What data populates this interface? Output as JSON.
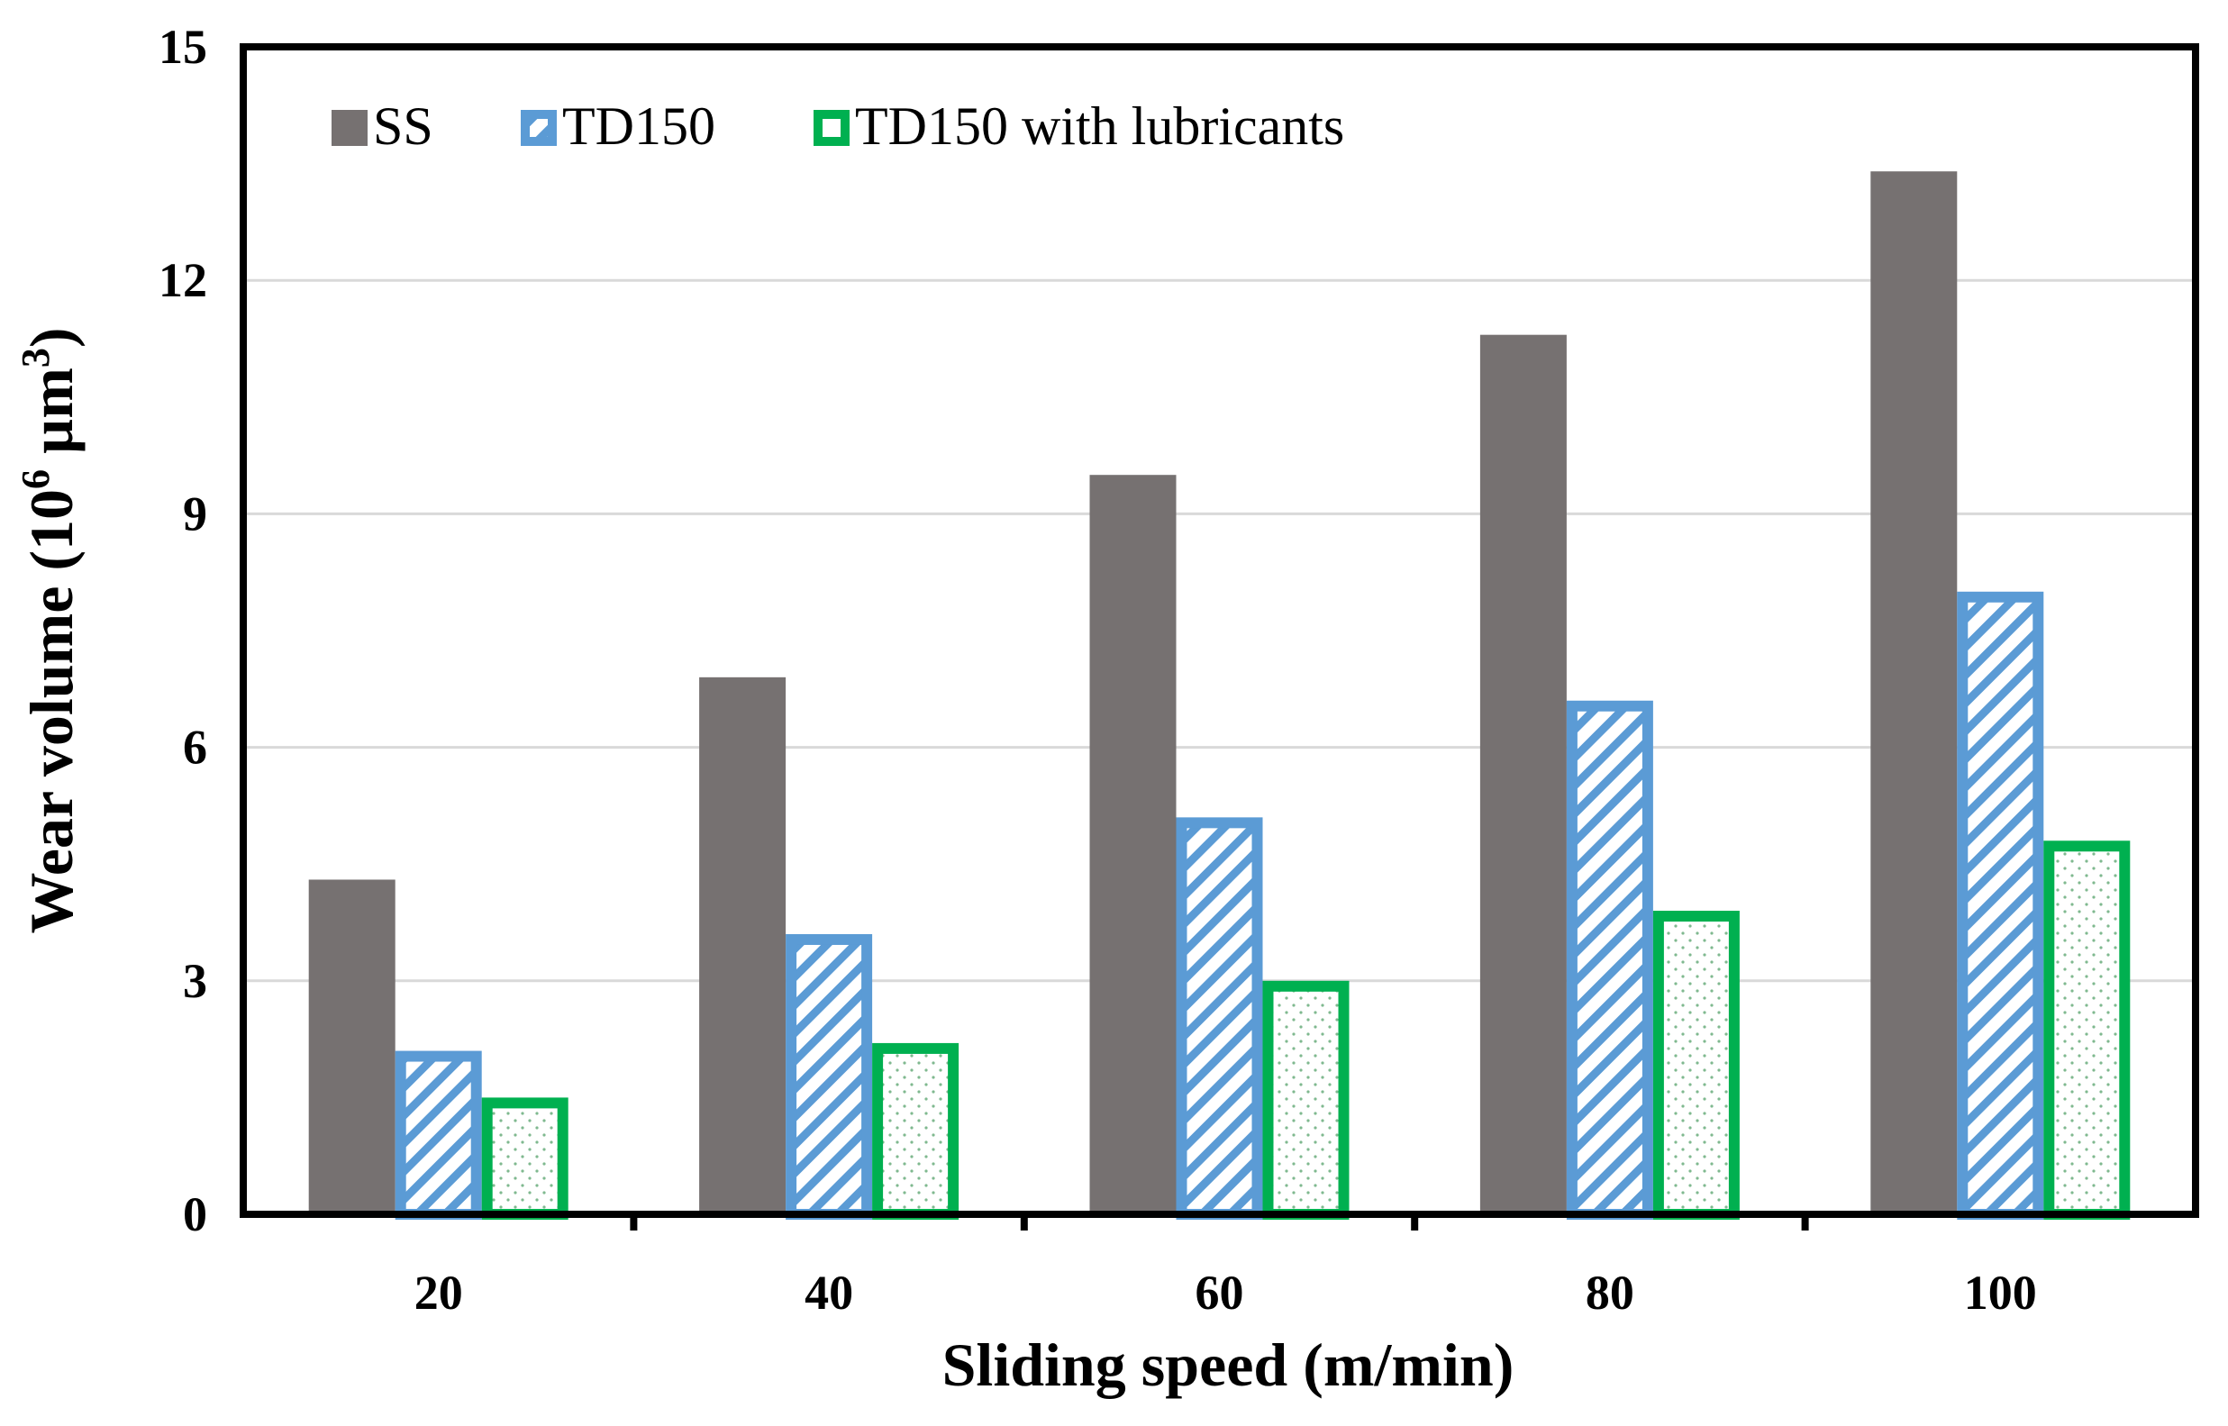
{
  "chart_data": {
    "type": "bar",
    "categories": [
      "20",
      "40",
      "60",
      "80",
      "100"
    ],
    "series": [
      {
        "name": "SS",
        "values": [
          4.3,
          6.9,
          9.5,
          11.3,
          13.4
        ],
        "style": "solid",
        "fill": "#767171",
        "stroke": "#767171"
      },
      {
        "name": "TD150",
        "values": [
          2.1,
          3.6,
          5.1,
          6.6,
          8.0
        ],
        "style": "hatch",
        "fill": "#ffffff",
        "stroke": "#5b9bd5"
      },
      {
        "name": "TD150 with lubricants",
        "values": [
          1.5,
          2.2,
          3.0,
          3.9,
          4.8
        ],
        "style": "dots",
        "fill": "#ffffff",
        "stroke": "#00b050"
      }
    ],
    "xlabel": "Sliding speed (m/min)",
    "ylabel": {
      "base": "Wear volume (10",
      "exp1": "6",
      "mid": " µm",
      "exp2": "3",
      "end": ")"
    },
    "ylim": [
      0,
      15
    ],
    "yticks": [
      "0",
      "3",
      "6",
      "9",
      "12",
      "15"
    ],
    "grid": true,
    "legend_position": "top-left"
  }
}
